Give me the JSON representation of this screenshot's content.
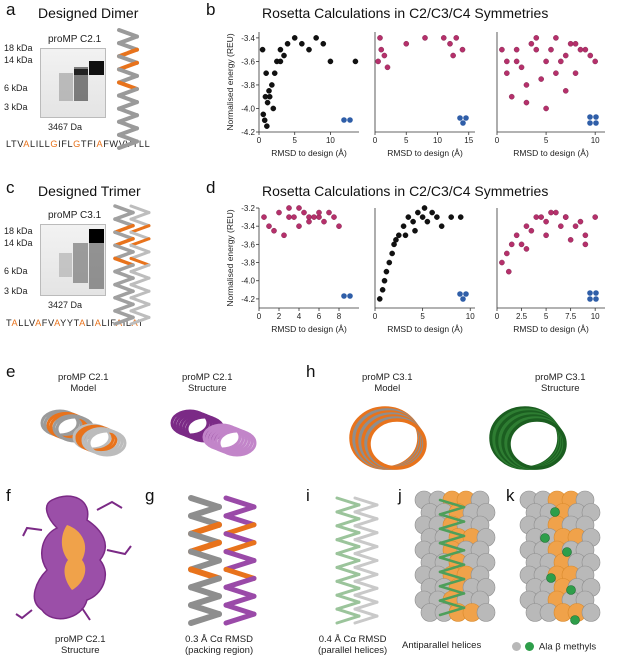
{
  "panels": {
    "a": {
      "letter": "a",
      "title": "Designed Dimer",
      "gel_label": "proMP C2.1",
      "markers": [
        "18 kDa",
        "14 kDa",
        "6 kDa",
        "3 kDa"
      ],
      "mass": "3467 Da",
      "sequence": [
        [
          "LTV",
          0
        ],
        [
          "A",
          1
        ],
        [
          "LILL",
          0
        ],
        [
          "G",
          1
        ],
        [
          "IFL",
          0
        ],
        [
          "G",
          1
        ],
        [
          "TFI",
          0
        ],
        [
          "A",
          1
        ],
        [
          "FWVVYLL",
          0
        ]
      ]
    },
    "b": {
      "letter": "b",
      "title": "Rosetta Calculations in C2/C3/C4 Symmetries"
    },
    "c": {
      "letter": "c",
      "title": "Designed Trimer",
      "gel_label": "proMP C3.1",
      "markers": [
        "18 kDa",
        "14 kDa",
        "6 kDa",
        "3 kDa"
      ],
      "mass": "3427 Da",
      "sequence": [
        [
          "T",
          0
        ],
        [
          "A",
          1
        ],
        [
          "LLV",
          0
        ],
        [
          "A",
          1
        ],
        [
          "FV",
          0
        ],
        [
          "A",
          1
        ],
        [
          "YYT",
          0
        ],
        [
          "A",
          1
        ],
        [
          "LI",
          0
        ],
        [
          "A",
          1
        ],
        [
          "LIF",
          0
        ],
        [
          "A",
          1
        ],
        [
          "IL",
          0
        ],
        [
          "A",
          1
        ],
        [
          "T",
          0
        ]
      ]
    },
    "d": {
      "letter": "d",
      "title": "Rosetta Calculations in C2/C3/C4 Symmetries"
    },
    "e": {
      "letter": "e",
      "label1": "proMP C2.1\nModel",
      "label2": "proMP C2.1\nStructure"
    },
    "f": {
      "letter": "f",
      "caption": "proMP C2.1\nStructure"
    },
    "g": {
      "letter": "g",
      "caption": "0.3 Å Cα RMSD\n(packing region)"
    },
    "h": {
      "letter": "h",
      "label1": "proMP C3.1\nModel",
      "label2": "proMP C3.1\nStructure"
    },
    "i": {
      "letter": "i",
      "caption": "0.4 Å Cα RMSD\n(parallel helices)"
    },
    "j": {
      "letter": "j",
      "caption": "Antiparallel helices"
    },
    "k": {
      "letter": "k",
      "caption": "Ala β methyls"
    }
  },
  "colors": {
    "accent": "#e8731c",
    "scatter_pink": "#b5306b",
    "scatter_black": "#111111",
    "symmetry_blue": "#2f5ea8",
    "purple": "#7b2a86",
    "green": "#2e7d32"
  },
  "chart_data": [
    {
      "id": "b1",
      "type": "scatter",
      "ylabel": "Normalised energy (REU)",
      "xlabel": "RMSD to design (Å)",
      "xlim": [
        0,
        14
      ],
      "ylim": [
        -4.2,
        -3.35
      ],
      "xticks": [
        0,
        5,
        10
      ],
      "yticks": [
        -3.4,
        -3.6,
        -3.8,
        -4.0,
        -4.2
      ],
      "series": [
        {
          "color": "#111111",
          "x": [
            0.5,
            1,
            1.5,
            2,
            2.5,
            3,
            3.5,
            4,
            5,
            6,
            7,
            8,
            9,
            10,
            0.8,
            1.2,
            1.8,
            2.2,
            3,
            0.6,
            1.4,
            0.9,
            1.1,
            13.5
          ],
          "y": [
            -3.5,
            -3.7,
            -3.9,
            -4.0,
            -3.6,
            -3.5,
            -3.55,
            -3.45,
            -3.4,
            -3.45,
            -3.5,
            -3.4,
            -3.45,
            -3.6,
            -4.1,
            -3.95,
            -3.8,
            -3.7,
            -3.6,
            -4.05,
            -3.85,
            -3.9,
            -4.15,
            -3.6
          ]
        }
      ],
      "symmetry": "C2"
    },
    {
      "id": "b2",
      "type": "scatter",
      "xlabel": "RMSD to design (Å)",
      "xlim": [
        0,
        16
      ],
      "ylim": [
        -4.2,
        -3.35
      ],
      "xticks": [
        0,
        5,
        10,
        15
      ],
      "yticks": [],
      "series": [
        {
          "color": "#b5306b",
          "x": [
            0.5,
            1,
            1.5,
            2,
            0.8,
            5,
            8,
            11,
            12,
            14,
            13,
            12.5
          ],
          "y": [
            -3.6,
            -3.5,
            -3.55,
            -3.65,
            -3.4,
            -3.45,
            -3.4,
            -3.4,
            -3.45,
            -3.5,
            -3.4,
            -3.55
          ]
        }
      ],
      "symmetry": "C3"
    },
    {
      "id": "b3",
      "type": "scatter",
      "xlabel": "RMSD to design (Å)",
      "xlim": [
        0,
        11
      ],
      "ylim": [
        -4.2,
        -3.35
      ],
      "xticks": [
        0,
        5,
        10
      ],
      "yticks": [],
      "series": [
        {
          "color": "#b5306b",
          "x": [
            0.5,
            1,
            2,
            3,
            4,
            5,
            6,
            7,
            8,
            9,
            10,
            1.5,
            2.5,
            3.5,
            4.5,
            5.5,
            6.5,
            7.5,
            8.5,
            9.5,
            3,
            5,
            7,
            1,
            2,
            4,
            6,
            8
          ],
          "y": [
            -3.5,
            -3.7,
            -3.6,
            -3.8,
            -3.5,
            -3.6,
            -3.4,
            -3.55,
            -3.7,
            -3.5,
            -3.6,
            -3.9,
            -3.65,
            -3.45,
            -3.75,
            -3.5,
            -3.6,
            -3.45,
            -3.5,
            -3.55,
            -3.95,
            -4.0,
            -3.85,
            -3.6,
            -3.5,
            -3.4,
            -3.7,
            -3.45
          ]
        }
      ],
      "symmetry": "C4"
    },
    {
      "id": "d1",
      "type": "scatter",
      "ylabel": "Normalised energy (REU)",
      "xlabel": "RMSD to design (Å)",
      "xlim": [
        0,
        10
      ],
      "ylim": [
        -4.3,
        -3.2
      ],
      "xticks": [
        0,
        2,
        4,
        6,
        8
      ],
      "yticks": [
        -3.2,
        -3.4,
        -3.6,
        -3.8,
        -4.0,
        -4.2
      ],
      "series": [
        {
          "color": "#b5306b",
          "x": [
            0.5,
            1,
            2,
            3,
            4,
            5,
            6,
            7,
            8,
            2.5,
            3.5,
            4.5,
            5.5,
            6.5,
            7.5,
            1.5,
            4,
            6,
            3,
            5
          ],
          "y": [
            -3.3,
            -3.4,
            -3.25,
            -3.3,
            -3.2,
            -3.35,
            -3.3,
            -3.25,
            -3.4,
            -3.5,
            -3.3,
            -3.25,
            -3.3,
            -3.35,
            -3.3,
            -3.45,
            -3.4,
            -3.25,
            -3.2,
            -3.3
          ]
        }
      ],
      "symmetry": "C2"
    },
    {
      "id": "d2",
      "type": "scatter",
      "xlabel": "RMSD to design (Å)",
      "xlim": [
        0,
        10.5
      ],
      "ylim": [
        -4.3,
        -3.2
      ],
      "xticks": [
        0,
        5,
        10
      ],
      "yticks": [],
      "series": [
        {
          "color": "#111111",
          "x": [
            0.5,
            0.8,
            1,
            1.2,
            1.5,
            2,
            2.5,
            3,
            3.5,
            4,
            4.5,
            5,
            5.5,
            6,
            6.5,
            7,
            8,
            9,
            1.8,
            2.2,
            3.2,
            4.2,
            5.2
          ],
          "y": [
            -4.2,
            -4.1,
            -4.0,
            -3.9,
            -3.8,
            -3.6,
            -3.5,
            -3.4,
            -3.3,
            -3.35,
            -3.25,
            -3.3,
            -3.35,
            -3.25,
            -3.3,
            -3.4,
            -3.3,
            -3.3,
            -3.7,
            -3.55,
            -3.5,
            -3.45,
            -3.2
          ]
        }
      ],
      "symmetry": "C3"
    },
    {
      "id": "d3",
      "type": "scatter",
      "xlabel": "RMSD to design (Å)",
      "xlim": [
        0,
        11
      ],
      "ylim": [
        -4.3,
        -3.2
      ],
      "xticks": [
        0.0,
        2.5,
        5.0,
        7.5,
        10.0
      ],
      "yticks": [],
      "series": [
        {
          "color": "#b5306b",
          "x": [
            0.5,
            1,
            1.5,
            2,
            3,
            4,
            5,
            6,
            7,
            8,
            9,
            10,
            2.5,
            3.5,
            4.5,
            5.5,
            6.5,
            7.5,
            8.5,
            1.2,
            3,
            5,
            7,
            9
          ],
          "y": [
            -3.8,
            -3.7,
            -3.6,
            -3.5,
            -3.4,
            -3.3,
            -3.35,
            -3.25,
            -3.3,
            -3.4,
            -3.5,
            -3.3,
            -3.6,
            -3.45,
            -3.3,
            -3.25,
            -3.4,
            -3.55,
            -3.35,
            -3.9,
            -3.65,
            -3.5,
            -3.3,
            -3.6
          ]
        }
      ],
      "symmetry": "C4"
    }
  ]
}
